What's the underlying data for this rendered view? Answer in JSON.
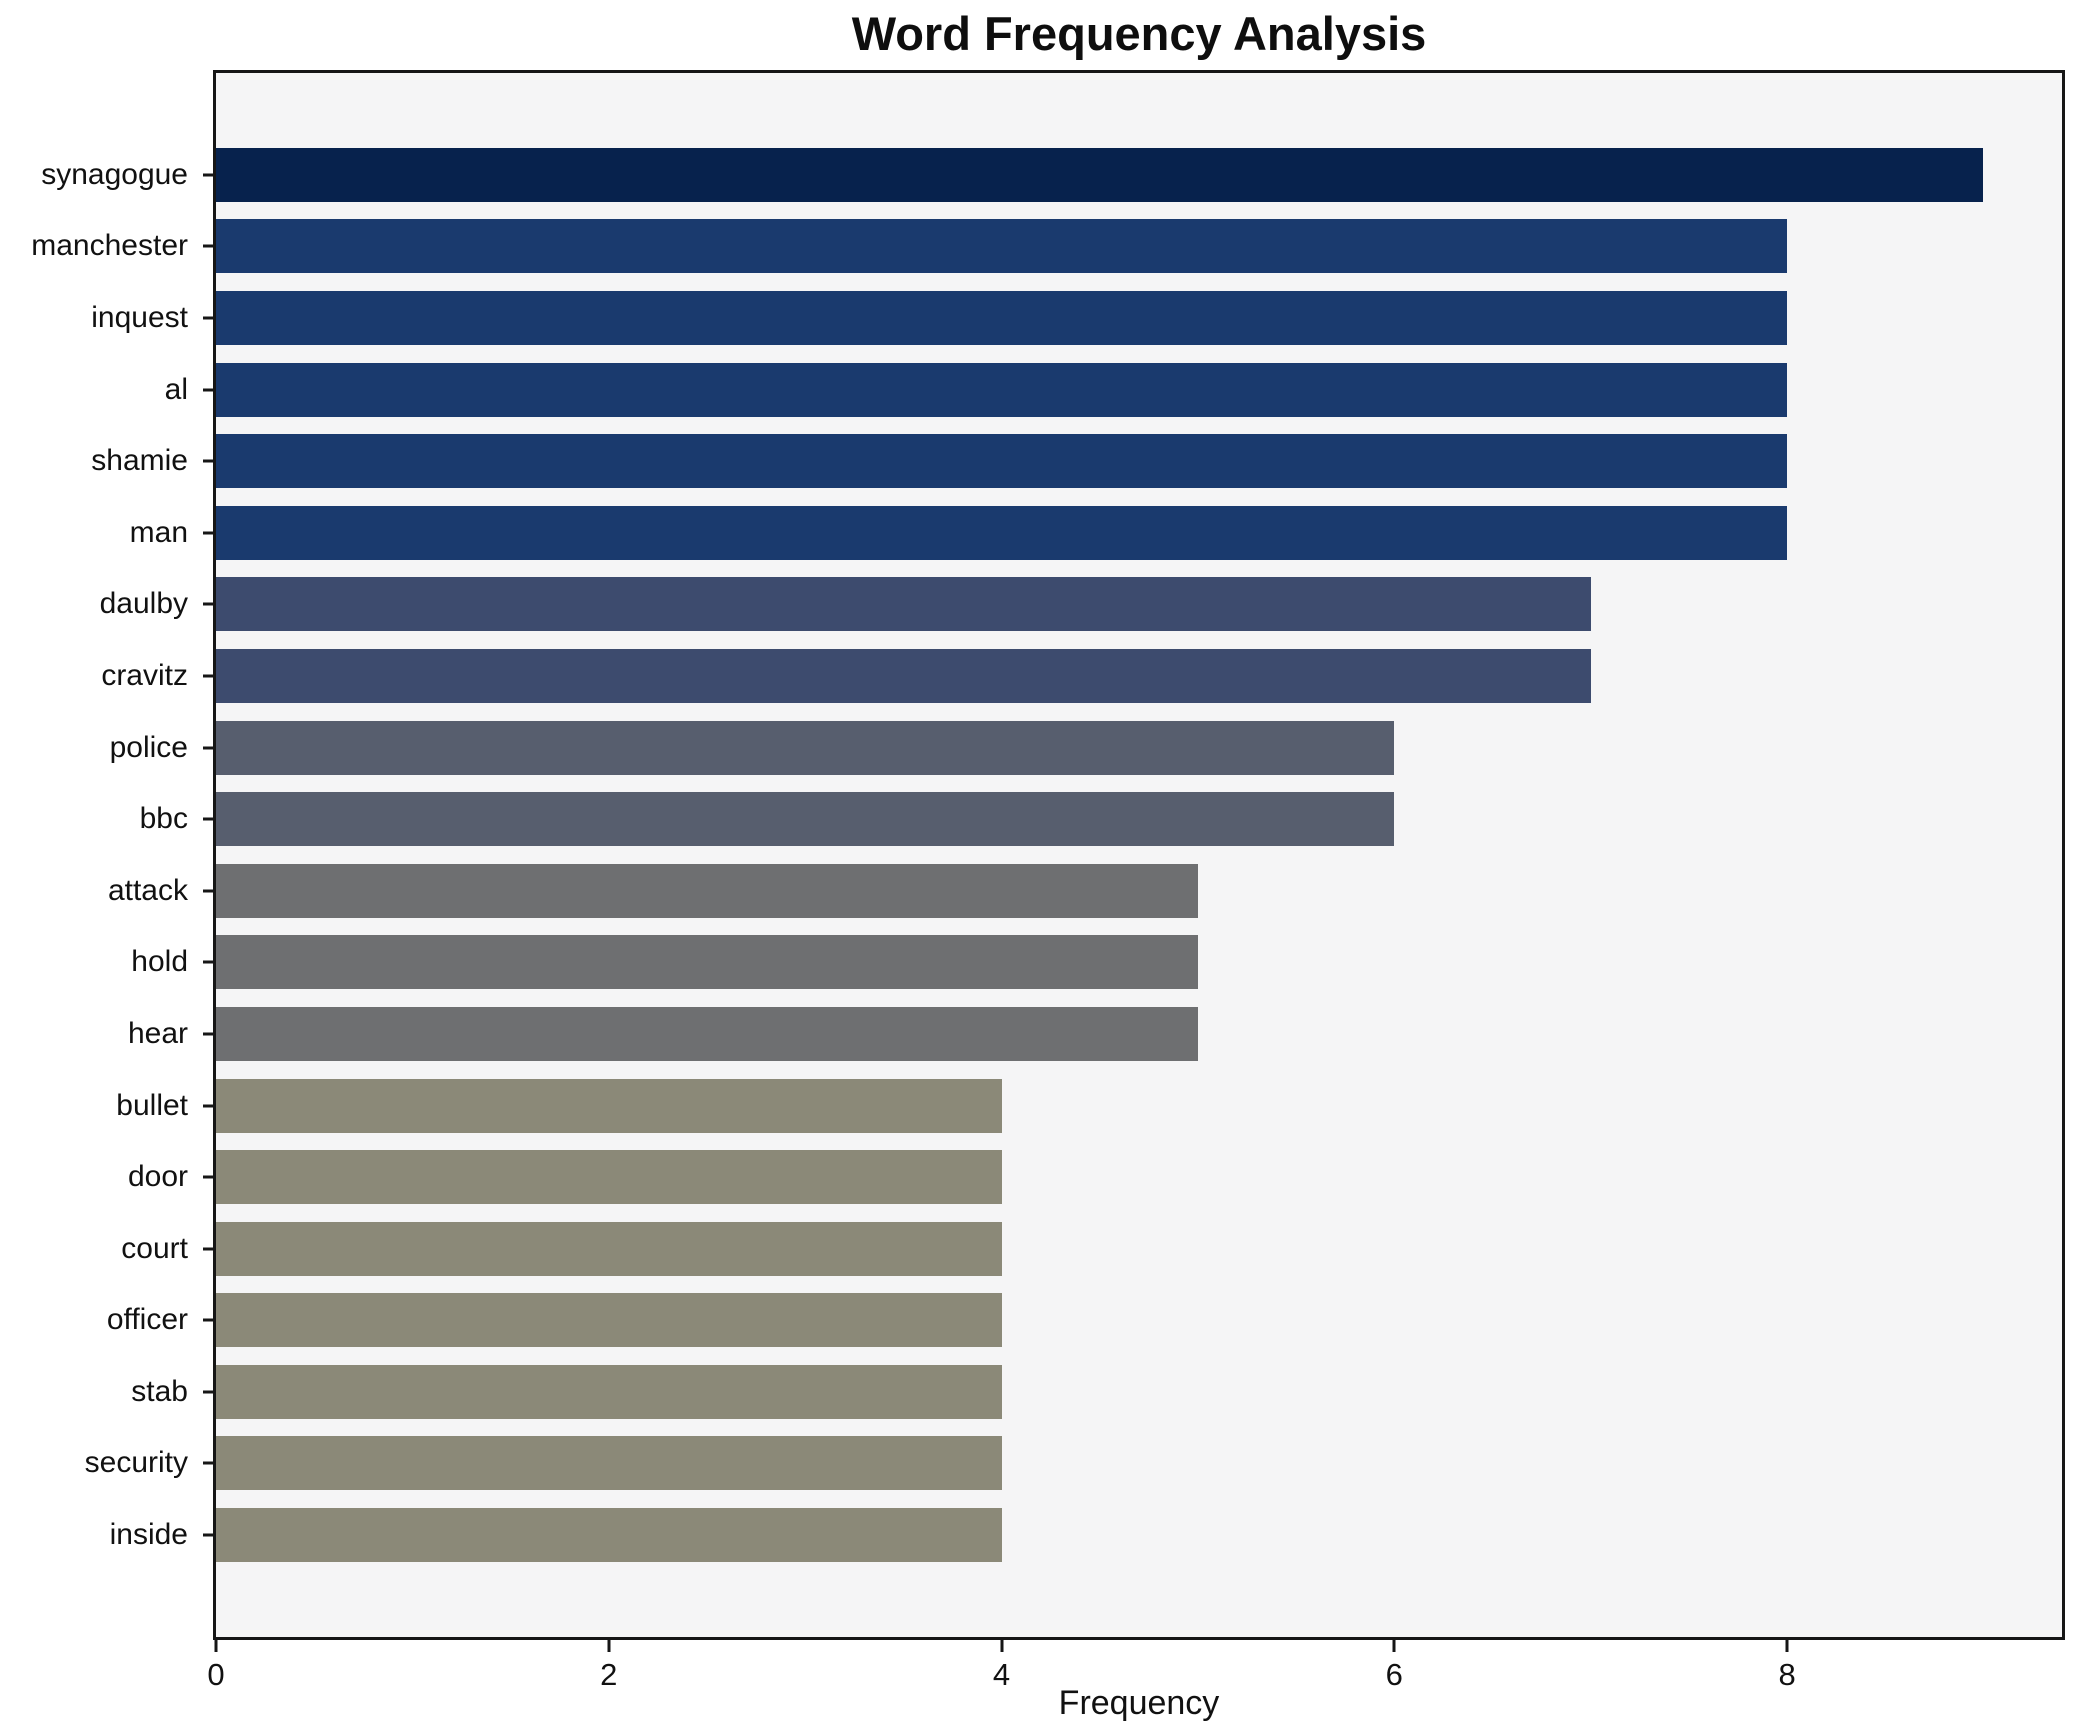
{
  "chart_data": {
    "type": "bar",
    "orientation": "horizontal",
    "title": "Word Frequency Analysis",
    "xlabel": "Frequency",
    "ylabel": "",
    "categories": [
      "synagogue",
      "manchester",
      "inquest",
      "al",
      "shamie",
      "man",
      "daulby",
      "cravitz",
      "police",
      "bbc",
      "attack",
      "hold",
      "hear",
      "bullet",
      "door",
      "court",
      "officer",
      "stab",
      "security",
      "inside"
    ],
    "values": [
      9,
      8,
      8,
      8,
      8,
      8,
      7,
      7,
      6,
      6,
      5,
      5,
      5,
      4,
      4,
      4,
      4,
      4,
      4,
      4
    ],
    "bar_colors": [
      "#07224d",
      "#1a3a6e",
      "#1a3a6e",
      "#1a3a6e",
      "#1a3a6e",
      "#1a3a6e",
      "#3d4b6e",
      "#3d4b6e",
      "#575e6e",
      "#575e6e",
      "#6e6f71",
      "#6e6f71",
      "#6e6f71",
      "#8b8978",
      "#8b8978",
      "#8b8978",
      "#8b8978",
      "#8b8978",
      "#8b8978",
      "#8b8978"
    ],
    "xlim": [
      0,
      9.4
    ],
    "xticks": [
      0,
      2,
      4,
      6,
      8
    ],
    "grid": false,
    "legend": false,
    "plot_background": "#f5f5f6",
    "figure_background": "#ffffff",
    "spine_color": "#161616"
  }
}
